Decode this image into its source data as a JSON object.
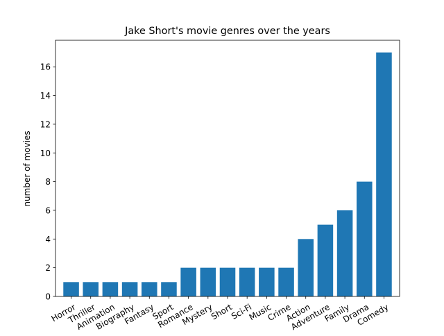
{
  "chart_data": {
    "type": "bar",
    "title": "Jake Short's movie genres over the years",
    "xlabel": "",
    "ylabel": "number of movies",
    "categories": [
      "Horror",
      "Thriller",
      "Animation",
      "Biography",
      "Fantasy",
      "Sport",
      "Romance",
      "Mystery",
      "Short",
      "Sci-Fi",
      "Music",
      "Crime",
      "Action",
      "Adventure",
      "Family",
      "Drama",
      "Comedy"
    ],
    "values": [
      1,
      1,
      1,
      1,
      1,
      1,
      2,
      2,
      2,
      2,
      2,
      2,
      4,
      5,
      6,
      8,
      17
    ],
    "ylim": [
      0,
      17.85
    ],
    "yticks": [
      0,
      2,
      4,
      6,
      8,
      10,
      12,
      14,
      16
    ],
    "bar_color": "#1f77b4",
    "grid": false,
    "legend": "none"
  }
}
